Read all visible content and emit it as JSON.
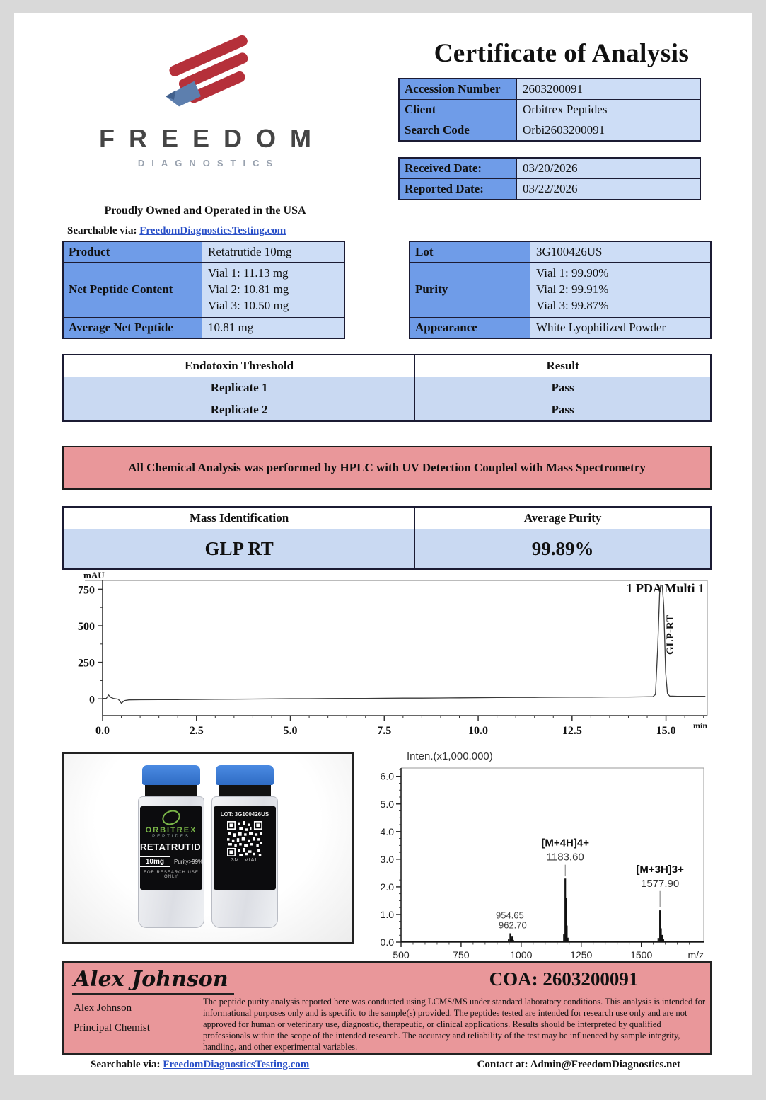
{
  "title": "Certificate of Analysis",
  "logo": {
    "name": "FREEDOM",
    "sub": "DIAGNOSTICS",
    "tagline": "Proudly Owned and Operated in the USA",
    "search_label": "Searchable via:",
    "search_link": "FreedomDiagnosticsTesting.com"
  },
  "info_table": {
    "rows": [
      {
        "label": "Accession Number",
        "value": "2603200091"
      },
      {
        "label": "Client",
        "value": "Orbitrex Peptides"
      },
      {
        "label": "Search Code",
        "value": "Orbi2603200091"
      }
    ]
  },
  "date_table": {
    "rows": [
      {
        "label": "Received Date:",
        "value": "03/20/2026"
      },
      {
        "label": "Reported Date:",
        "value": "03/22/2026"
      }
    ]
  },
  "product_table": {
    "rows": [
      {
        "label": "Product",
        "value": "Retatrutide 10mg"
      },
      {
        "label": "Net Peptide Content",
        "lines": [
          "Vial 1: 11.13 mg",
          "Vial 2: 10.81 mg",
          "Vial 3: 10.50 mg"
        ]
      },
      {
        "label": "Average Net Peptide",
        "value": "10.81 mg"
      }
    ]
  },
  "lot_table": {
    "rows": [
      {
        "label": "Lot",
        "value": "3G100426US"
      },
      {
        "label": "Purity",
        "lines": [
          "Vial 1: 99.90%",
          "Vial 2: 99.91%",
          "Vial 3: 99.87%"
        ]
      },
      {
        "label": "Appearance",
        "value": "White Lyophilized Powder"
      }
    ]
  },
  "endotoxin_table": {
    "headers": [
      "Endotoxin Threshold",
      "Result"
    ],
    "rows": [
      [
        "Replicate 1",
        "Pass"
      ],
      [
        "Replicate 2",
        "Pass"
      ]
    ]
  },
  "banner_text": "All Chemical Analysis was performed by HPLC with UV Detection Coupled with Mass Spectrometry",
  "mass_table": {
    "headers": [
      "Mass Identification",
      "Average Purity"
    ],
    "row": [
      "GLP RT",
      "99.89%"
    ]
  },
  "chart_data": [
    {
      "type": "line",
      "title": "1 PDA Multi 1",
      "ylabel": "mAU",
      "xlabel": "min",
      "x_ticks": [
        0.0,
        2.5,
        5.0,
        7.5,
        10.0,
        12.5,
        15.0
      ],
      "y_ticks": [
        0,
        250,
        500,
        750
      ],
      "xlim": [
        0,
        16.1
      ],
      "ylim": [
        -115,
        810
      ],
      "peak_label": "GLP-RT",
      "peak_rt_min": 14.88,
      "peak_height_mau": 780,
      "points": [
        [
          0,
          3
        ],
        [
          0.1,
          3
        ],
        [
          0.16,
          26
        ],
        [
          0.22,
          10
        ],
        [
          0.3,
          2
        ],
        [
          0.42,
          -2
        ],
        [
          0.5,
          -30
        ],
        [
          0.58,
          -12
        ],
        [
          0.7,
          -7
        ],
        [
          1,
          -6
        ],
        [
          1.5,
          -5
        ],
        [
          2,
          -5
        ],
        [
          2.5,
          -4
        ],
        [
          3,
          -3
        ],
        [
          3.5,
          -2
        ],
        [
          4,
          -1
        ],
        [
          4.5,
          0
        ],
        [
          5,
          1
        ],
        [
          5.5,
          1
        ],
        [
          6,
          2
        ],
        [
          6.5,
          3
        ],
        [
          7,
          3
        ],
        [
          7.5,
          4
        ],
        [
          8,
          5
        ],
        [
          8.5,
          5
        ],
        [
          9,
          6
        ],
        [
          9.5,
          7
        ],
        [
          10,
          8
        ],
        [
          10.5,
          9
        ],
        [
          11,
          10
        ],
        [
          11.5,
          10
        ],
        [
          12,
          11
        ],
        [
          12.5,
          12
        ],
        [
          13,
          12
        ],
        [
          13.5,
          13
        ],
        [
          14,
          13
        ],
        [
          14.4,
          14
        ],
        [
          14.65,
          15
        ],
        [
          14.72,
          30
        ],
        [
          14.78,
          350
        ],
        [
          14.83,
          720
        ],
        [
          14.86,
          778
        ],
        [
          14.9,
          775
        ],
        [
          14.94,
          640
        ],
        [
          14.99,
          180
        ],
        [
          15.04,
          35
        ],
        [
          15.1,
          19
        ],
        [
          15.3,
          17
        ],
        [
          15.6,
          17
        ],
        [
          16.05,
          17
        ]
      ]
    },
    {
      "type": "line",
      "title": "Inten.(x1,000,000)",
      "xlabel": "m/z",
      "x_ticks": [
        500,
        750,
        1000,
        1250,
        1500
      ],
      "y_ticks": [
        0.0,
        1.0,
        2.0,
        3.0,
        4.0,
        5.0,
        6.0
      ],
      "xlim": [
        500,
        1760
      ],
      "ylim": [
        0,
        6.3
      ],
      "sticks": [
        [
          800,
          0.05
        ],
        [
          948,
          0.1
        ],
        [
          954.65,
          0.32
        ],
        [
          958.5,
          0.14
        ],
        [
          962.7,
          0.2
        ],
        [
          967,
          0.08
        ],
        [
          1120,
          0.03
        ],
        [
          1178,
          0.28
        ],
        [
          1183.6,
          2.3
        ],
        [
          1186.5,
          1.6
        ],
        [
          1190,
          0.6
        ],
        [
          1194,
          0.16
        ],
        [
          1300,
          0.03
        ],
        [
          1571,
          0.15
        ],
        [
          1577.9,
          1.15
        ],
        [
          1582,
          0.5
        ],
        [
          1586.5,
          0.26
        ],
        [
          1592,
          0.1
        ],
        [
          1650,
          0.03
        ]
      ],
      "annotations": [
        {
          "mz": 1183.6,
          "ion": "[M+4H]4+",
          "value": "1183.60",
          "line_top": 2.8,
          "line_bottom": 2.38
        },
        {
          "mz": 1577.9,
          "ion": "[M+3H]3+",
          "value": "1577.90",
          "line_top": 1.85,
          "line_bottom": 1.28
        }
      ],
      "small_labels": {
        "mz": 953,
        "lines": [
          "954.65",
          "962.70"
        ]
      }
    }
  ],
  "vials": {
    "brand": "ORBITREX",
    "brand_sub": "PEPTIDES",
    "product": "RETATRUTIDE",
    "dose": "10mg",
    "purity": "Purity>99%",
    "research": "FOR RESEARCH USE ONLY",
    "lot": "LOT: 3G100426US",
    "size": "3ML VIAL"
  },
  "signature": {
    "script": "Alex Johnson",
    "name": "Alex Johnson",
    "role": "Principal Chemist",
    "coa": "COA: 2603200091",
    "disclaimer": "The peptide purity analysis reported here was conducted using LCMS/MS under standard laboratory conditions. This analysis is intended for informational purposes only and is specific to the sample(s) provided. The peptides tested are intended for research use only and are not approved for human or veterinary use, diagnostic, therapeutic, or clinical applications. Results should be interpreted by qualified professionals within the scope of the intended research. The accuracy and reliability of the test may be influenced by sample integrity, handling, and other experimental variables."
  },
  "footer": {
    "search_label": "Searchable via:",
    "search_link": "FreedomDiagnosticsTesting.com",
    "contact": "Contact at: Admin@FreedomDiagnostics.net"
  },
  "colors": {
    "header_blue": "#6f9ce8",
    "cell_blue": "#cdddf6",
    "row_blue": "#c9d9f2",
    "pink": "#e9979a",
    "link_blue": "#2a50c8",
    "border": "#1b1b33",
    "logo_red": "#b5303a",
    "logo_eagle_blue": "#5d7fae"
  }
}
